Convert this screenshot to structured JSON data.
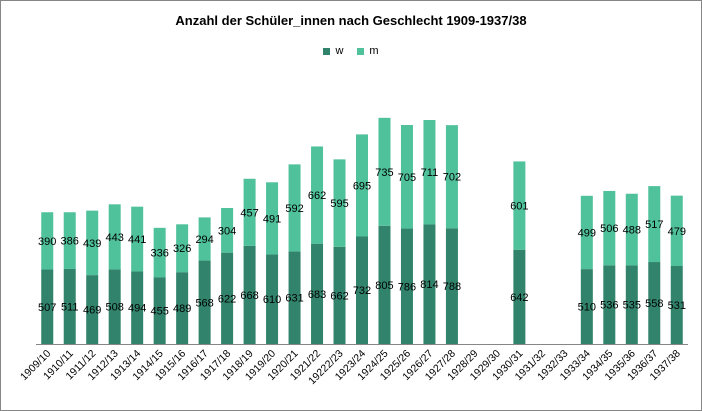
{
  "chart_data": {
    "type": "bar",
    "stacked": true,
    "title": "Anzahl der Schüler_innen nach Geschlecht 1909-1937/38",
    "xlabel": "",
    "ylabel": "",
    "ylim": [
      0,
      1600
    ],
    "legend_position": "top-center",
    "grid": false,
    "categories": [
      "1909/10",
      "1910/11",
      "1911/12",
      "1912/13",
      "1913/14",
      "1914/15",
      "1915/16",
      "1916/17",
      "1917/18",
      "1918/19",
      "1919/20",
      "1920/21",
      "1921/22",
      "19222/23",
      "1923/24",
      "1924/25",
      "1925/26",
      "1926/27",
      "1927/28",
      "1928/29",
      "1929/30",
      "1930/31",
      "1931/32",
      "1932/33",
      "1933/34",
      "1934/35",
      "1935/36",
      "1936/37",
      "1937/38"
    ],
    "series": [
      {
        "name": "w",
        "color": "#31836b",
        "values": [
          507,
          511,
          469,
          508,
          494,
          455,
          489,
          568,
          622,
          668,
          610,
          631,
          683,
          662,
          732,
          805,
          786,
          814,
          788,
          null,
          null,
          642,
          null,
          null,
          510,
          536,
          535,
          558,
          531
        ]
      },
      {
        "name": "m",
        "color": "#4fc19b",
        "values": [
          390,
          386,
          439,
          443,
          441,
          336,
          326,
          294,
          304,
          457,
          491,
          592,
          662,
          595,
          695,
          735,
          705,
          711,
          702,
          null,
          null,
          601,
          null,
          null,
          499,
          506,
          488,
          517,
          479
        ]
      }
    ]
  }
}
